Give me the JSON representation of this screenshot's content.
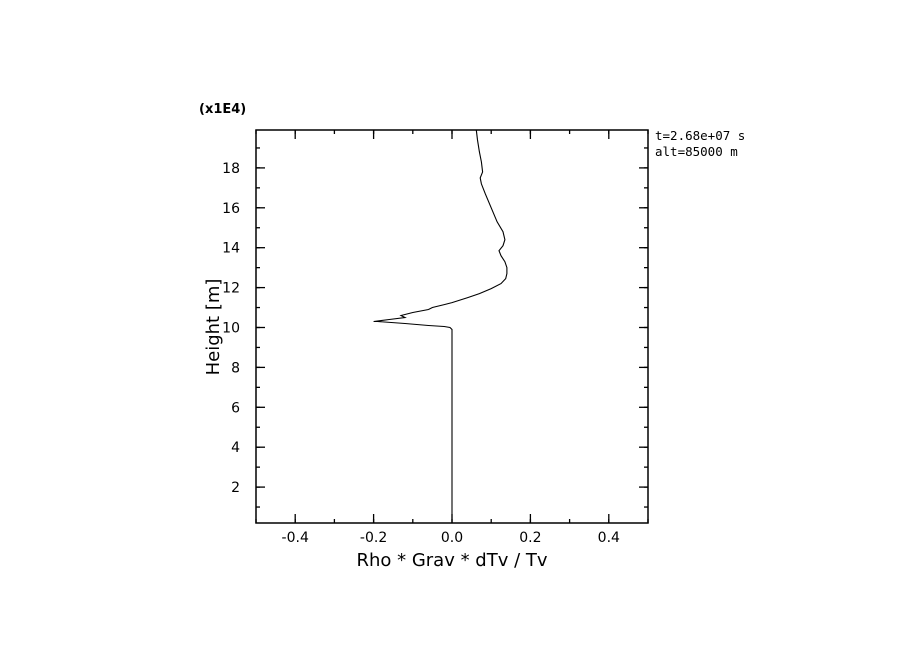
{
  "chart_data": {
    "type": "line",
    "title": "",
    "xlabel": "Rho * Grav * dTv / Tv",
    "ylabel": "Height [m]",
    "y_multiplier": "(x1E4)",
    "xlim": [
      -0.5,
      0.5
    ],
    "ylim": [
      0.2,
      19.9
    ],
    "x_ticks": [
      -0.4,
      -0.2,
      0.0,
      0.2,
      0.4
    ],
    "x_tick_labels": [
      "-0.4",
      "-0.2",
      "0.0",
      "0.2",
      "0.4"
    ],
    "y_ticks": [
      2,
      4,
      6,
      8,
      10,
      12,
      14,
      16,
      18
    ],
    "y_tick_labels": [
      "2",
      "4",
      "6",
      "8",
      "10",
      "12",
      "14",
      "16",
      "18"
    ],
    "grid": false,
    "annotations": [
      "t=2.68e+07 s",
      "alt=85000 m"
    ],
    "series": [
      {
        "x": [
          0.0,
          0.0,
          0.0,
          0.0,
          -0.005,
          -0.02,
          -0.06,
          -0.12,
          -0.19,
          -0.2,
          -0.16,
          -0.12,
          -0.13,
          -0.11,
          -0.1,
          -0.06,
          -0.05,
          -0.02,
          0.0,
          0.04,
          0.07,
          0.1,
          0.125,
          0.137,
          0.14,
          0.14,
          0.135,
          0.125,
          0.12,
          0.13,
          0.135,
          0.13,
          0.115,
          0.1,
          0.085,
          0.075,
          0.072,
          0.078,
          0.075,
          0.07,
          0.065,
          0.062
        ],
        "y": [
          0.3,
          5.0,
          9.0,
          9.9,
          10.0,
          10.05,
          10.1,
          10.2,
          10.3,
          10.3,
          10.4,
          10.5,
          10.6,
          10.7,
          10.75,
          10.9,
          11.0,
          11.15,
          11.25,
          11.5,
          11.7,
          11.95,
          12.2,
          12.45,
          12.7,
          13.0,
          13.3,
          13.6,
          13.85,
          14.1,
          14.4,
          14.8,
          15.3,
          16.0,
          16.7,
          17.2,
          17.5,
          17.8,
          18.3,
          18.8,
          19.4,
          19.9
        ]
      }
    ]
  }
}
